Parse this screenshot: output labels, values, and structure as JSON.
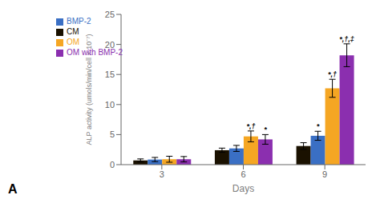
{
  "chart_data": {
    "type": "bar",
    "title": "A",
    "xlabel": "Days",
    "ylabel": "ALP activity (umols/min/cell × 10⁻⁷)",
    "categories": [
      "3",
      "6",
      "9"
    ],
    "series": [
      {
        "name": "CM",
        "color": "#1a1100",
        "values": [
          0.7,
          2.4,
          3.1
        ],
        "errors": [
          0.25,
          0.35,
          0.55
        ]
      },
      {
        "name": "BMP-2",
        "color": "#3a6fc4",
        "values": [
          0.85,
          2.7,
          4.8
        ],
        "errors": [
          0.35,
          0.5,
          0.75
        ]
      },
      {
        "name": "OM",
        "color": "#f5a623",
        "values": [
          0.9,
          4.7,
          12.7
        ],
        "errors": [
          0.5,
          0.9,
          1.5
        ]
      },
      {
        "name": "OM with BMP-2",
        "color": "#8b2faf",
        "values": [
          0.9,
          4.2,
          18.2
        ],
        "errors": [
          0.45,
          0.8,
          1.9
        ]
      }
    ],
    "annotations": [
      {
        "category": "6",
        "series": "OM",
        "text": "*,†"
      },
      {
        "category": "6",
        "series": "OM with BMP-2",
        "text": "*"
      },
      {
        "category": "9",
        "series": "BMP-2",
        "text": "*"
      },
      {
        "category": "9",
        "series": "OM",
        "text": "*,†"
      },
      {
        "category": "9",
        "series": "OM with BMP-2",
        "text": "*,†,‡"
      }
    ],
    "ylim": [
      0,
      25
    ],
    "yticks": [
      0,
      5,
      10,
      15,
      20,
      25
    ],
    "grid": false,
    "legend": "upper left"
  }
}
